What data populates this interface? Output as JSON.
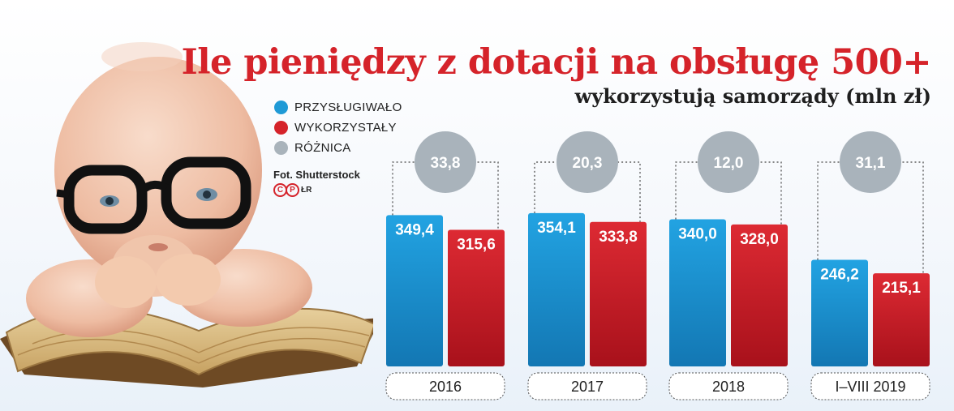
{
  "title": "Ile pieniędzy z dotacji na obsługę 500+",
  "subtitle": "wykorzystują samorządy (mln zł)",
  "legend": [
    {
      "label": "PRZYSŁUGIWAŁO",
      "color": "#1f9ad6"
    },
    {
      "label": "WYKORZYSTAŁY",
      "color": "#d5232a"
    },
    {
      "label": "RÓŻNICA",
      "color": "#a9b3bb"
    }
  ],
  "credit": "Fot. Shutterstock",
  "logo": {
    "mark": "P",
    "suffix": "ŁR"
  },
  "chart_data": {
    "type": "bar",
    "categories": [
      "2016",
      "2017",
      "2018",
      "I–VIII 2019"
    ],
    "series": [
      {
        "name": "PRZYSŁUGIWAŁO",
        "values": [
          349.4,
          354.1,
          340.0,
          246.2
        ],
        "labels": [
          "349,4",
          "354,1",
          "340,0",
          "246,2"
        ],
        "color": "#1f9ad6"
      },
      {
        "name": "WYKORZYSTAŁY",
        "values": [
          315.6,
          333.8,
          328.0,
          215.1
        ],
        "labels": [
          "315,6",
          "333,8",
          "328,0",
          "215,1"
        ],
        "color": "#d5232a"
      },
      {
        "name": "RÓŻNICA",
        "values": [
          33.8,
          20.3,
          12.0,
          31.1
        ],
        "labels": [
          "33,8",
          "20,3",
          "12,0",
          "31,1"
        ],
        "color": "#a9b3bb"
      }
    ],
    "ylim": [
      0,
      400
    ]
  }
}
